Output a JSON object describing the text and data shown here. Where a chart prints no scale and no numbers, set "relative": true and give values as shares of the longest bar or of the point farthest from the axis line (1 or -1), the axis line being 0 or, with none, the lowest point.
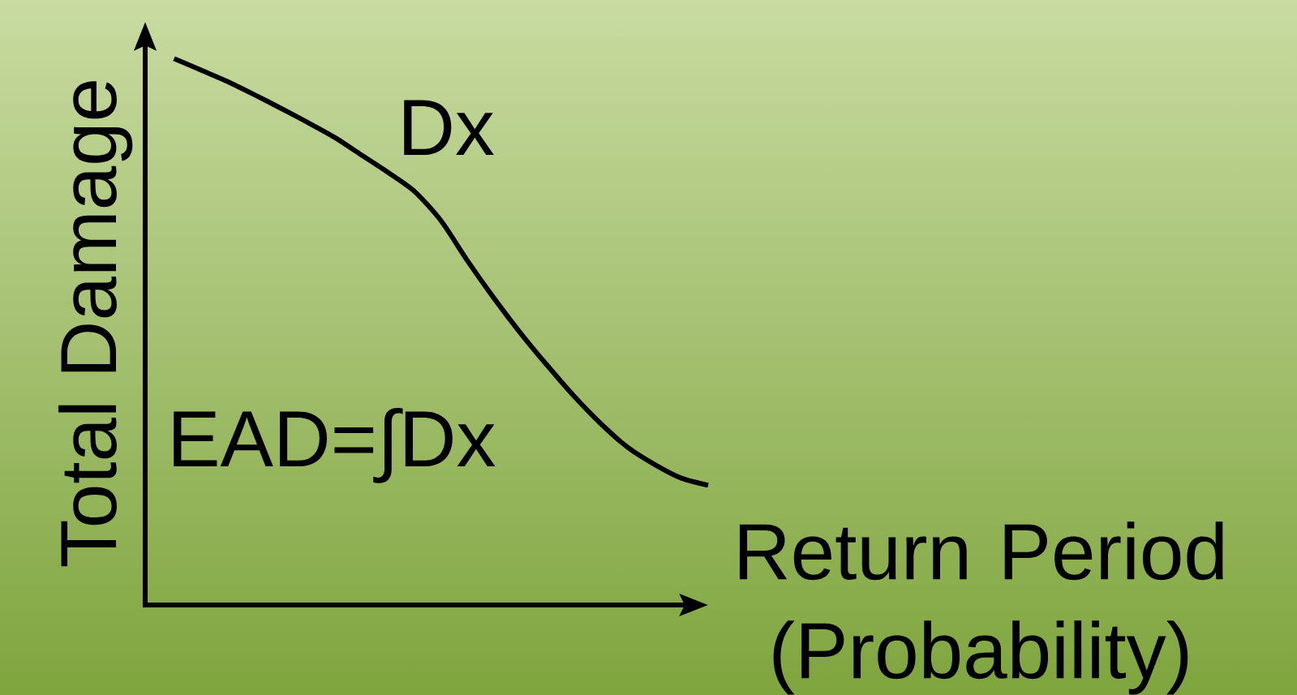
{
  "chart_data": {
    "type": "line",
    "xlabel": "Return Period (Probability)",
    "ylabel": "Total Damage",
    "annotations": [
      "EAD=∫Dx"
    ],
    "categories": [
      null,
      null,
      null,
      null,
      null,
      null,
      null,
      null,
      null,
      null,
      null,
      null,
      null,
      null,
      null,
      null,
      null,
      null,
      null,
      null,
      null
    ],
    "relative": true,
    "series": [
      {
        "name": "Dx",
        "color": "#000000",
        "values": [
          1.0,
          0.979,
          0.958,
          0.934,
          0.909,
          0.883,
          0.856,
          0.824,
          0.792,
          0.757,
          0.703,
          0.629,
          0.56,
          0.496,
          0.437,
          0.381,
          0.331,
          0.288,
          0.257,
          0.232,
          0.219
        ]
      }
    ]
  }
}
